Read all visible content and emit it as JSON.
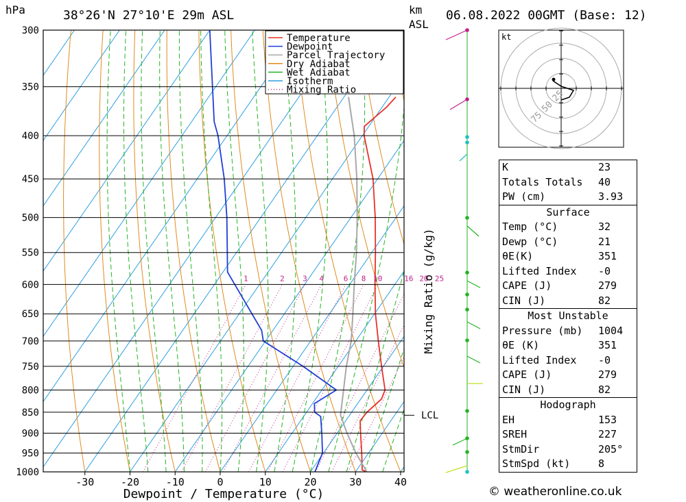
{
  "header": {
    "location": "38°26'N  27°10'E  29m  ASL",
    "datetime": "06.08.2022  00GMT  (Base: 12)",
    "pressure_unit": "hPa",
    "height_unit_km": "km",
    "height_unit_asl": "ASL"
  },
  "chart_data": {
    "type": "skew-t",
    "xlabel": "Dewpoint / Temperature (°C)",
    "ylabel_right": "Mixing Ratio (g/kg)",
    "pressure_levels": [
      300,
      350,
      400,
      450,
      500,
      550,
      600,
      650,
      700,
      750,
      800,
      850,
      900,
      950,
      1000
    ],
    "temperature_ticks": [
      -30,
      -20,
      -10,
      0,
      10,
      20,
      30,
      40
    ],
    "xlim": [
      -40,
      40
    ],
    "ylim": [
      1000,
      300
    ],
    "mixing_ratio_labels": [
      "1",
      "2",
      "3",
      "4",
      "6",
      "8",
      "10",
      "16",
      "20",
      "25"
    ],
    "mixing_ratio_values": [
      1,
      2,
      3,
      4,
      6,
      8,
      10,
      16,
      20,
      25
    ],
    "lcl_label": "LCL",
    "lcl_pressure": 857,
    "legend": [
      {
        "name": "Temperature",
        "color": "#e8302a",
        "style": "solid"
      },
      {
        "name": "Dewpoint",
        "color": "#1f3fd6",
        "style": "solid"
      },
      {
        "name": "Parcel Trajectory",
        "color": "#a8a8a8",
        "style": "solid"
      },
      {
        "name": "Dry Adiabat",
        "color": "#e08a1e",
        "style": "solid"
      },
      {
        "name": "Wet Adiabat",
        "color": "#22b422",
        "style": "solid"
      },
      {
        "name": "Isotherm",
        "color": "#2d9ee0",
        "style": "solid"
      },
      {
        "name": "Mixing Ratio",
        "color": "#c0208a",
        "style": "dotted"
      }
    ],
    "series": [
      {
        "name": "Temperature",
        "points": [
          [
            1000,
            32.5
          ],
          [
            995,
            31.2
          ],
          [
            950,
            28.5
          ],
          [
            900,
            25.2
          ],
          [
            870,
            23.2
          ],
          [
            850,
            23.4
          ],
          [
            820,
            24.6
          ],
          [
            800,
            24.0
          ],
          [
            750,
            19.6
          ],
          [
            700,
            15.0
          ],
          [
            650,
            10.2
          ],
          [
            600,
            5.6
          ],
          [
            550,
            0.8
          ],
          [
            500,
            -4.6
          ],
          [
            450,
            -11.0
          ],
          [
            400,
            -19.6
          ],
          [
            390,
            -21.0
          ],
          [
            370,
            -19.0
          ],
          [
            360,
            -18.5
          ]
        ]
      },
      {
        "name": "Dewpoint",
        "points": [
          [
            1000,
            21.0
          ],
          [
            950,
            19.8
          ],
          [
            900,
            16.6
          ],
          [
            860,
            13.8
          ],
          [
            850,
            11.8
          ],
          [
            830,
            10.4
          ],
          [
            800,
            13.2
          ],
          [
            750,
            2.2
          ],
          [
            700,
            -10.5
          ],
          [
            680,
            -12.5
          ],
          [
            600,
            -25.5
          ],
          [
            580,
            -29.0
          ],
          [
            500,
            -37.5
          ],
          [
            450,
            -44.0
          ],
          [
            400,
            -52.0
          ],
          [
            385,
            -55.0
          ],
          [
            300,
            -70.0
          ]
        ]
      },
      {
        "name": "Parcel Trajectory",
        "points": [
          [
            1000,
            32.5
          ],
          [
            950,
            27.2
          ],
          [
            900,
            22.2
          ],
          [
            857,
            18.0
          ],
          [
            800,
            14.8
          ],
          [
            750,
            11.8
          ],
          [
            700,
            9.0
          ],
          [
            650,
            5.2
          ],
          [
            600,
            1.0
          ],
          [
            550,
            -3.4
          ],
          [
            500,
            -8.6
          ],
          [
            450,
            -14.6
          ],
          [
            400,
            -21.8
          ],
          [
            360,
            -29.0
          ]
        ]
      }
    ],
    "wind_profile_colors": [
      "#c0208a",
      "#c0208a",
      "#20c0c0",
      "#22b422",
      "#c0e020"
    ]
  },
  "hodograph": {
    "unit": "kt",
    "ring_labels": [
      "25",
      "50",
      "75"
    ]
  },
  "indices": {
    "top": [
      {
        "label": "K",
        "value": "23"
      },
      {
        "label": "Totals Totals",
        "value": "40"
      },
      {
        "label": "PW (cm)",
        "value": "3.93"
      }
    ],
    "surface_title": "Surface",
    "surface": [
      {
        "label": "Temp (°C)",
        "value": "32"
      },
      {
        "label": "Dewp (°C)",
        "value": "21"
      },
      {
        "label": "θE(K)",
        "value": "351"
      },
      {
        "label": "Lifted Index",
        "value": "-0"
      },
      {
        "label": "CAPE (J)",
        "value": "279"
      },
      {
        "label": "CIN (J)",
        "value": "82"
      }
    ],
    "unstable_title": "Most Unstable",
    "unstable": [
      {
        "label": "Pressure (mb)",
        "value": "1004"
      },
      {
        "label": "θE (K)",
        "value": "351"
      },
      {
        "label": "Lifted Index",
        "value": "-0"
      },
      {
        "label": "CAPE (J)",
        "value": "279"
      },
      {
        "label": "CIN (J)",
        "value": "82"
      }
    ],
    "hodo_title": "Hodograph",
    "hodo": [
      {
        "label": "EH",
        "value": "153"
      },
      {
        "label": "SREH",
        "value": "227"
      },
      {
        "label": "StmDir",
        "value": "205°"
      },
      {
        "label": "StmSpd (kt)",
        "value": "8"
      }
    ]
  },
  "footer": {
    "credit": "© weatheronline.co.uk"
  }
}
